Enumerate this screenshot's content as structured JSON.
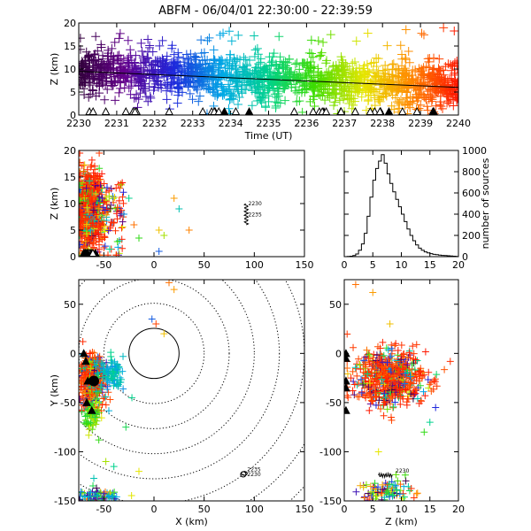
{
  "figure": {
    "title": "ABFM - 06/04/01 22:30:00 - 22:39:59"
  },
  "chart_data": [
    {
      "id": "time_panel",
      "type": "scatter",
      "xlabel": "Time (UT)",
      "ylabel": "Z (km)",
      "xlim": [
        2230,
        2240
      ],
      "ylim": [
        0,
        20
      ],
      "x_ticks": [
        "2230",
        "2231",
        "2232",
        "2233",
        "2234",
        "2235",
        "2236",
        "2237",
        "2238",
        "2239",
        "2240"
      ],
      "y_ticks": [
        "0",
        "5",
        "10",
        "15",
        "20"
      ],
      "color_scale": "rainbow by time (purple to red)",
      "trend_line": {
        "x": [
          2230,
          2240
        ],
        "y": [
          9.5,
          6.0
        ]
      },
      "station_markers_z": 0
    },
    {
      "id": "xz_panel",
      "type": "scatter",
      "xlabel": "",
      "ylabel": "Z (km)",
      "xlim": [
        -75,
        150
      ],
      "ylim": [
        0,
        20
      ],
      "x_ticks": [
        "-50",
        "0",
        "50",
        "100",
        "150"
      ],
      "y_ticks": [
        "0",
        "5",
        "10",
        "15",
        "20"
      ],
      "annotation_labels": [
        "2230",
        "2235"
      ]
    },
    {
      "id": "histogram_panel",
      "type": "bar",
      "xlabel": "",
      "ylabel": "number of sources",
      "xlim": [
        0,
        20
      ],
      "ylim": [
        0,
        1000
      ],
      "x_ticks": [
        "0",
        "5",
        "10",
        "15",
        "20"
      ],
      "y_ticks": [
        "0",
        "200",
        "400",
        "600",
        "800",
        "1000"
      ],
      "x": [
        0.5,
        1.0,
        1.5,
        2.0,
        2.5,
        3.0,
        3.5,
        4.0,
        4.5,
        5.0,
        5.5,
        6.0,
        6.5,
        7.0,
        7.5,
        8.0,
        8.5,
        9.0,
        9.5,
        10.0,
        10.5,
        11.0,
        11.5,
        12.0,
        12.5,
        13.0,
        13.5,
        14.0,
        14.5,
        15.0,
        15.5,
        16.0,
        16.5,
        17.0,
        17.5,
        18.0,
        18.5,
        19.0,
        19.5
      ],
      "values": [
        0,
        2,
        4,
        10,
        25,
        60,
        120,
        220,
        380,
        560,
        720,
        830,
        900,
        960,
        880,
        780,
        690,
        610,
        540,
        470,
        400,
        330,
        260,
        200,
        150,
        110,
        80,
        60,
        45,
        35,
        28,
        22,
        18,
        14,
        12,
        10,
        8,
        6,
        4
      ]
    },
    {
      "id": "xy_panel",
      "type": "scatter",
      "xlabel": "X (km)",
      "ylabel": "Y (km)",
      "xlim": [
        -75,
        150
      ],
      "ylim": [
        -150,
        75
      ],
      "x_ticks": [
        "-50",
        "0",
        "50",
        "100",
        "150"
      ],
      "y_ticks": [
        "-150",
        "-100",
        "-50",
        "0",
        "50"
      ],
      "range_rings_center": [
        0,
        0
      ],
      "range_rings_km": [
        25,
        50,
        75,
        100,
        125,
        150,
        175,
        200
      ],
      "annotation_labels": [
        "2235",
        "2230"
      ]
    },
    {
      "id": "zy_panel",
      "type": "scatter",
      "xlabel": "Z (km)",
      "ylabel": "",
      "xlim": [
        0,
        20
      ],
      "ylim": [
        -150,
        75
      ],
      "x_ticks": [
        "0",
        "5",
        "10",
        "15",
        "20"
      ],
      "y_ticks": [
        "-150",
        "-100",
        "-50",
        "0",
        "50"
      ],
      "annotation_labels": [
        "2230"
      ]
    }
  ]
}
